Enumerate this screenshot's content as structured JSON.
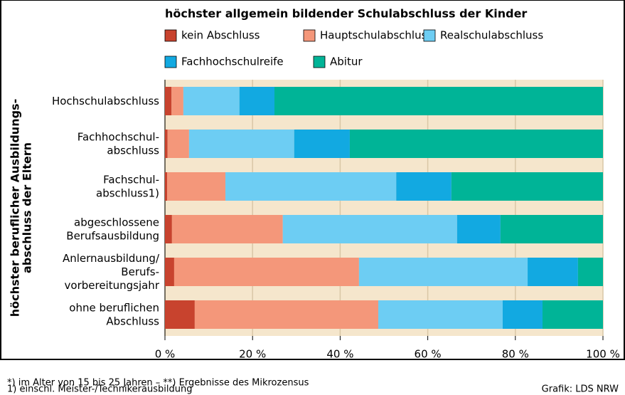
{
  "chart_data": {
    "type": "stacked_barh",
    "title": "höchster allgemein bildender Schulabschluss der Kinder",
    "ylabel": [
      "höchster beruflicher Ausbildungs-",
      "abschluss der Eltern"
    ],
    "categories": [
      "Hochschulabschluss",
      "Fachhochschul-\nabschluss",
      "Fachschul-\nabschluss1)",
      "abgeschlossene\nBerufsausbildung",
      "Anlernausbildung/\nBerufs-\nvorbereitungsjahr",
      "ohne beruflichen\nAbschluss"
    ],
    "series": [
      {
        "name": "kein Abschluss",
        "color": "#c8432e",
        "values": [
          1.5,
          0.6,
          0.5,
          1.6,
          2.1,
          6.8
        ]
      },
      {
        "name": "Hauptschulabschluss",
        "color": "#f4977a",
        "values": [
          2.7,
          4.9,
          13.3,
          25.3,
          42.2,
          41.9
        ]
      },
      {
        "name": "Realschulabschluss",
        "color": "#6dcdf3",
        "values": [
          12.8,
          24.0,
          39.0,
          39.8,
          38.5,
          28.4
        ]
      },
      {
        "name": "Fachhochschulreife",
        "color": "#12a9e1",
        "values": [
          8.0,
          12.7,
          12.6,
          9.9,
          11.5,
          9.1
        ]
      },
      {
        "name": "Abitur",
        "color": "#00b497",
        "values": [
          75.0,
          57.8,
          34.6,
          23.4,
          5.7,
          13.8
        ]
      }
    ],
    "xlim": [
      0,
      100
    ],
    "xticks": [
      {
        "value": 0,
        "label": "0 %"
      },
      {
        "value": 20,
        "label": "20 %"
      },
      {
        "value": 40,
        "label": "40 %"
      },
      {
        "value": 60,
        "label": "60 %"
      },
      {
        "value": 80,
        "label": "80 %"
      },
      {
        "value": 100,
        "label": "100 %"
      }
    ],
    "grid": true,
    "footnotes": [
      "*) im Alter von 15 bis 25 Jahren – **) Ergebnisse des Mikrozensus",
      "1) einschl. Meister-/Technikerausbildung"
    ],
    "source": "Grafik: LDS NRW"
  }
}
